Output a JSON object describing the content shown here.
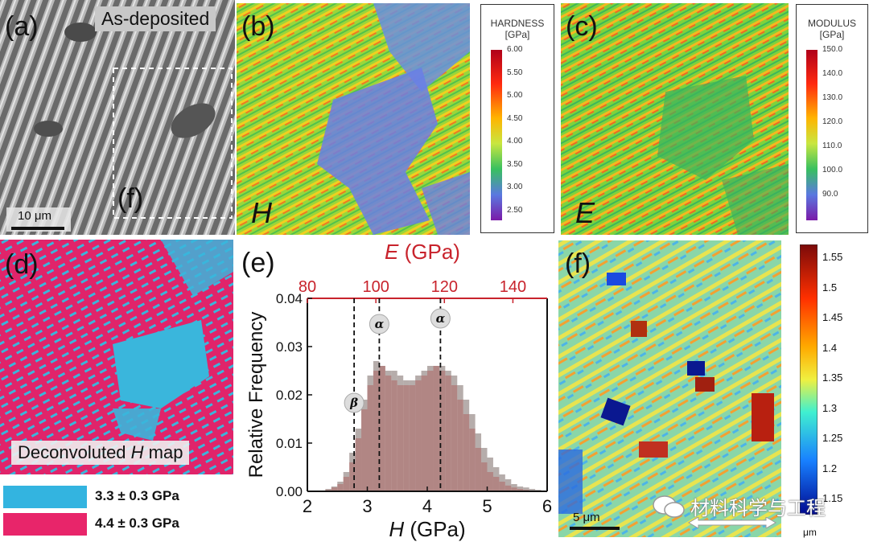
{
  "panels": {
    "a": {
      "label": "(a)",
      "tag": "As-deposited",
      "inset_label": "(f)",
      "scale": "10 μm"
    },
    "b": {
      "label": "(b)",
      "symbol": "H"
    },
    "c": {
      "label": "(c)",
      "symbol": "E"
    },
    "d": {
      "label": "(d)",
      "caption_pre": "Deconvoluted ",
      "caption_sym": "H",
      "caption_post": " map"
    },
    "e": {
      "label": "(e)"
    },
    "f": {
      "label": "(f)",
      "scale": "5 μm"
    }
  },
  "hardness_bar": {
    "title1": "HARDNESS",
    "title2": "[GPa]",
    "ticks": [
      "6.00",
      "5.50",
      "5.00",
      "4.50",
      "4.00",
      "3.50",
      "3.00",
      "2.50"
    ]
  },
  "modulus_bar": {
    "title1": "MODULUS",
    "title2": "[GPa]",
    "ticks": [
      "150.0",
      "140.0",
      "130.0",
      "120.0",
      "110.0",
      "100.0",
      "90.0"
    ]
  },
  "height_bar": {
    "ticks": [
      "1.55",
      "1.5",
      "1.45",
      "1.4",
      "1.35",
      "1.3",
      "1.25",
      "1.2",
      "1.15"
    ],
    "unit": "μm"
  },
  "legend": [
    {
      "color": "#33b4e0",
      "text": "3.3 ± 0.3 GPa"
    },
    {
      "color": "#e8256a",
      "text": "4.4 ± 0.3 GPa"
    }
  ],
  "watermark": "材料科学与工程",
  "colors": {
    "accent_red": "#c8232c"
  },
  "chart_data": {
    "type": "bar",
    "title": "",
    "xlabel_sym": "H",
    "xlabel": " (GPa)",
    "ylabel": "Relative Frequency",
    "top_label_sym": "E",
    "top_label": " (GPa)",
    "xlim": [
      2,
      6
    ],
    "ylim": [
      0,
      0.04
    ],
    "x_ticks": [
      "2",
      "3",
      "4",
      "5",
      "6"
    ],
    "y_ticks": [
      "0.00",
      "0.01",
      "0.02",
      "0.03",
      "0.04"
    ],
    "top_ticks": [
      "80",
      "100",
      "120",
      "140"
    ],
    "top_lim": [
      80,
      150
    ],
    "annotations": [
      {
        "text": "β",
        "x": 2.78
      },
      {
        "text": "α",
        "x": 3.2
      },
      {
        "text": "α",
        "x": 4.22
      }
    ],
    "series": [
      {
        "name": "H histogram",
        "x": [
          2.35,
          2.45,
          2.55,
          2.65,
          2.75,
          2.85,
          2.95,
          3.05,
          3.15,
          3.25,
          3.35,
          3.45,
          3.55,
          3.65,
          3.75,
          3.85,
          3.95,
          4.05,
          4.15,
          4.25,
          4.35,
          4.45,
          4.55,
          4.65,
          4.75,
          4.85,
          4.95,
          5.05,
          5.15,
          5.25,
          5.35,
          5.45,
          5.55,
          5.65,
          5.75,
          5.85
        ],
        "values": [
          0.0005,
          0.001,
          0.002,
          0.004,
          0.008,
          0.013,
          0.019,
          0.024,
          0.027,
          0.026,
          0.025,
          0.025,
          0.024,
          0.023,
          0.023,
          0.024,
          0.025,
          0.026,
          0.026,
          0.026,
          0.025,
          0.024,
          0.022,
          0.019,
          0.016,
          0.012,
          0.009,
          0.007,
          0.005,
          0.0035,
          0.0025,
          0.0015,
          0.001,
          0.0008,
          0.0005,
          0.0003
        ]
      },
      {
        "name": "E histogram",
        "x": [
          2.35,
          2.45,
          2.55,
          2.65,
          2.75,
          2.85,
          2.95,
          3.05,
          3.15,
          3.25,
          3.35,
          3.45,
          3.55,
          3.65,
          3.75,
          3.85,
          3.95,
          4.05,
          4.15,
          4.25,
          4.35,
          4.45,
          4.55,
          4.65,
          4.75,
          4.85,
          4.95,
          5.05,
          5.15,
          5.25,
          5.35,
          5.45,
          5.55,
          5.65
        ],
        "values": [
          0.0003,
          0.0008,
          0.0015,
          0.003,
          0.006,
          0.011,
          0.017,
          0.022,
          0.025,
          0.026,
          0.024,
          0.023,
          0.022,
          0.022,
          0.022,
          0.023,
          0.024,
          0.025,
          0.026,
          0.025,
          0.024,
          0.022,
          0.019,
          0.016,
          0.013,
          0.009,
          0.006,
          0.004,
          0.003,
          0.002,
          0.0012,
          0.0008,
          0.0005,
          0.0003
        ]
      }
    ]
  }
}
